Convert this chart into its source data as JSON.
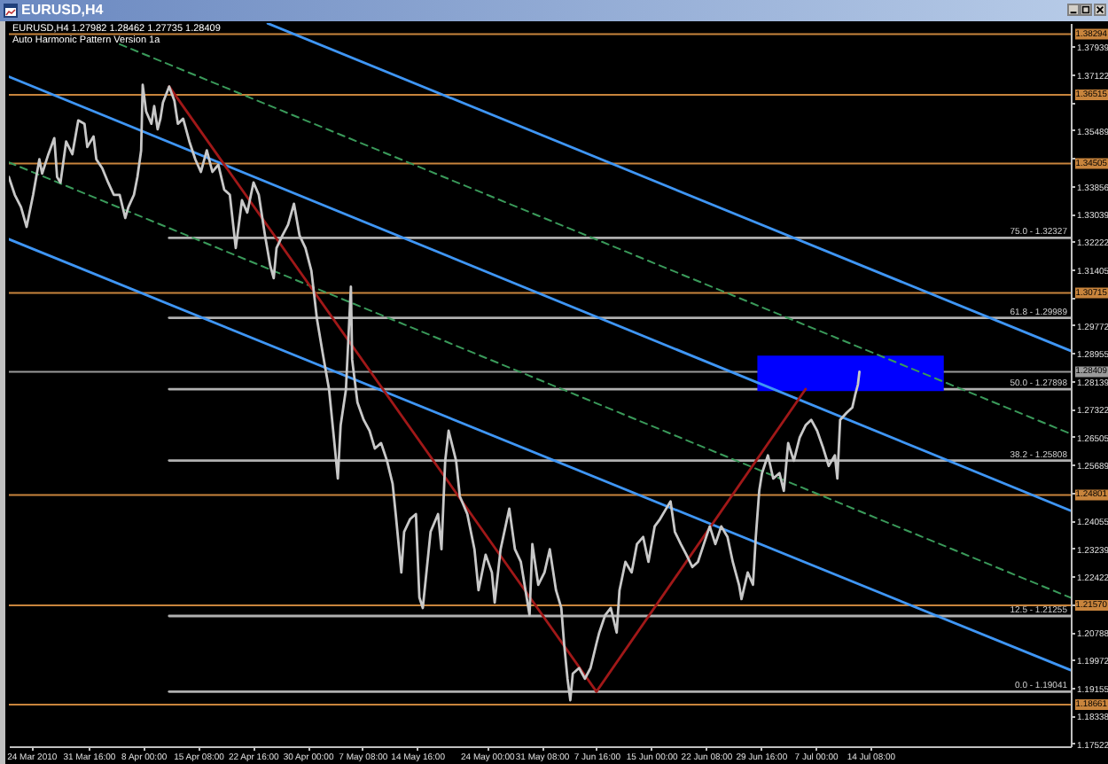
{
  "chart_data": {
    "type": "line",
    "title": "EURUSD,H4",
    "subtitle": "EURUSD,H4  1.27982 1.28462 1.27735 1.28409",
    "annotations": [
      "Auto Harmonic Pattern Version 1a",
      {
        "text": "75.0 - 1.32327",
        "y": 1.32327
      },
      {
        "text": "61.8 - 1.29989",
        "y": 1.29989
      },
      {
        "text": "50.0 - 1.27898",
        "y": 1.27898
      },
      {
        "text": "38.2 - 1.25808",
        "y": 1.25808
      },
      {
        "text": "12.5 - 1.21255",
        "y": 1.21255
      },
      {
        "text": "0.0 - 1.19041",
        "y": 1.19041
      }
    ],
    "xlim": [
      "2010-03-21T00:00",
      "2010-08-10T04:00"
    ],
    "xticks": [
      {
        "value": "2010-03-24T00:00",
        "label": "24 Mar 2010"
      },
      {
        "value": "2010-03-31T16:00",
        "label": "31 Mar 16:00"
      },
      {
        "value": "2010-04-08T00:00",
        "label": "8 Apr 00:00"
      },
      {
        "value": "2010-04-15T08:00",
        "label": "15 Apr 08:00"
      },
      {
        "value": "2010-04-22T16:00",
        "label": "22 Apr 16:00"
      },
      {
        "value": "2010-04-30T00:00",
        "label": "30 Apr 00:00"
      },
      {
        "value": "2010-05-07T08:00",
        "label": "7 May 08:00"
      },
      {
        "value": "2010-05-14T16:00",
        "label": "14 May 16:00"
      },
      {
        "value": "2010-05-24T00:00",
        "label": "24 May 00:00"
      },
      {
        "value": "2010-05-31T08:00",
        "label": "31 May 08:00"
      },
      {
        "value": "2010-06-07T16:00",
        "label": "7 Jun 16:00"
      },
      {
        "value": "2010-06-15T00:00",
        "label": "15 Jun 00:00"
      },
      {
        "value": "2010-06-22T08:00",
        "label": "22 Jun 08:00"
      },
      {
        "value": "2010-06-29T16:00",
        "label": "29 Jun 16:00"
      },
      {
        "value": "2010-07-07T00:00",
        "label": "7 Jul 00:00"
      },
      {
        "value": "2010-07-14T08:00",
        "label": "14 Jul 08:00"
      }
    ],
    "ylim": [
      1.1744,
      1.3862
    ],
    "yticks": [
      1.17522,
      1.18338,
      1.19155,
      1.19972,
      1.20788,
      {
        "value": 1.21605,
        "label": null
      },
      1.22422,
      1.23239,
      1.24055,
      {
        "value": 1.24872,
        "label": null
      },
      1.25689,
      1.26505,
      1.27322,
      1.28139,
      1.28955,
      1.29772,
      {
        "value": 1.30589,
        "label": null
      },
      1.31405,
      1.32222,
      1.33039,
      1.33856,
      {
        "value": 1.34672,
        "label": null
      },
      1.35489,
      {
        "value": 1.36306,
        "label": null
      },
      1.37122,
      1.37939
    ],
    "ref_lines": [
      {
        "axis": "y",
        "value": 1.38294,
        "label": "1.38294",
        "color": "#c8843c"
      },
      {
        "axis": "y",
        "value": 1.36515,
        "label": "1.36515",
        "color": "#c8843c"
      },
      {
        "axis": "y",
        "value": 1.34505,
        "label": "1.34505",
        "color": "#c8843c"
      },
      {
        "axis": "y",
        "value": 1.30715,
        "label": "1.30715",
        "color": "#c8843c"
      },
      {
        "axis": "y",
        "value": 1.24801,
        "label": "1.24801",
        "color": "#c8843c"
      },
      {
        "axis": "y",
        "value": 1.2157,
        "label": "1.21570",
        "color": "#c8843c"
      },
      {
        "axis": "y",
        "value": 1.18661,
        "label": "1.18661",
        "color": "#c8843c"
      },
      {
        "axis": "y",
        "value": 1.28409,
        "label": "1.28409",
        "color": "#9a9a9a"
      }
    ],
    "series": [
      {
        "color": "#b0b0b0",
        "x": [
          "2010-04-11T11:00",
          "2010-08-10T04:00"
        ],
        "values": [
          1.32327,
          1.32327
        ]
      },
      {
        "color": "#b0b0b0",
        "x": [
          "2010-04-11T11:00",
          "2010-08-10T04:00"
        ],
        "values": [
          1.29989,
          1.29989
        ]
      },
      {
        "color": "#b0b0b0",
        "x": [
          "2010-04-11T11:00",
          "2010-08-10T04:00"
        ],
        "values": [
          1.27898,
          1.27898
        ]
      },
      {
        "color": "#b0b0b0",
        "x": [
          "2010-04-11T11:00",
          "2010-08-10T04:00"
        ],
        "values": [
          1.25808,
          1.25808
        ]
      },
      {
        "color": "#b0b0b0",
        "x": [
          "2010-04-11T11:00",
          "2010-08-10T04:00"
        ],
        "values": [
          1.21255,
          1.21255
        ]
      },
      {
        "color": "#b0b0b0",
        "x": [
          "2010-04-11T11:00",
          "2010-08-10T04:00"
        ],
        "values": [
          1.19041,
          1.19041
        ]
      },
      {
        "color": "#0000ff",
        "x": [
          "2010-06-29T05:00",
          "2010-07-24T04:00"
        ],
        "values": [
          null,
          null
        ],
        "lower": [
          1.2784,
          1.2784
        ],
        "upper": [
          1.2888,
          1.2888
        ]
      },
      {
        "color": "#3f96f5",
        "x": [
          "2010-04-24T16:00",
          "2010-08-10T04:00"
        ],
        "values": [
          1.3861,
          1.2902
        ]
      },
      {
        "color": "#3f96f5",
        "x": [
          "2010-03-21T00:00",
          "2010-08-10T04:00"
        ],
        "values": [
          1.3705,
          1.2434
        ]
      },
      {
        "color": "#3f96f5",
        "x": [
          "2010-03-21T00:00",
          "2010-08-10T04:00"
        ],
        "values": [
          1.3229,
          1.1967
        ]
      },
      {
        "color": "#3a9a5a",
        "line_style": "dashed",
        "x": [
          "2010-04-04T20:00",
          "2010-08-10T04:00"
        ],
        "values": [
          1.38,
          1.2659
        ]
      },
      {
        "color": "#3a9a5a",
        "line_style": "dashed",
        "x": [
          "2010-03-21T00:00",
          "2010-08-10T04:00"
        ],
        "values": [
          1.3454,
          1.2179
        ]
      },
      {
        "color": "#a01818",
        "x": [
          "2010-04-11T11:00",
          "2010-06-07T16:00",
          "2010-07-05T16:00"
        ],
        "values": [
          1.3676,
          1.1904,
          1.279
        ]
      },
      {
        "color": "#c8c8c8",
        "x": [
          "2010-03-21T00:00",
          "2010-03-21T19:00",
          "2010-03-22T15:00",
          "2010-03-23T09:00",
          "2010-03-24T06:00",
          "2010-03-25T02:00",
          "2010-03-25T11:00",
          "2010-03-26T07:00",
          "2010-03-27T02:00",
          "2010-03-27T11:00",
          "2010-03-27T22:00",
          "2010-03-28T16:00",
          "2010-03-29T12:00",
          "2010-03-30T07:00",
          "2010-03-31T03:00",
          "2010-03-31T12:00",
          "2010-04-01T08:00",
          "2010-04-01T17:00",
          "2010-04-02T12:00",
          "2010-04-03T07:00",
          "2010-04-04T01:00",
          "2010-04-04T20:00",
          "2010-04-05T14:00",
          "2010-04-06T00:00",
          "2010-04-06T18:00",
          "2010-04-07T05:00",
          "2010-04-07T17:00",
          "2010-04-07T22:00",
          "2010-04-08T09:00",
          "2010-04-09T02:00",
          "2010-04-09T11:00",
          "2010-04-09T22:00",
          "2010-04-10T07:00",
          "2010-04-10T15:00",
          "2010-04-11T11:00",
          "2010-04-12T04:00",
          "2010-04-12T15:00",
          "2010-04-13T08:00",
          "2010-04-14T04:00",
          "2010-04-14T23:00",
          "2010-04-15T17:00",
          "2010-04-16T12:00",
          "2010-04-17T06:00",
          "2010-04-18T01:00",
          "2010-04-18T20:00",
          "2010-04-19T14:00",
          "2010-04-20T09:00",
          "2010-04-21T05:00",
          "2010-04-21T22:00",
          "2010-04-22T18:00",
          "2010-04-23T11:00",
          "2010-04-24T07:00",
          "2010-04-25T00:00",
          "2010-04-25T11:00",
          "2010-04-25T20:00",
          "2010-04-26T15:00",
          "2010-04-27T09:00",
          "2010-04-28T04:00",
          "2010-04-28T22:00",
          "2010-04-29T17:00",
          "2010-04-30T12:00",
          "2010-05-01T06:00",
          "2010-05-02T01:00",
          "2010-05-02T21:00",
          "2010-05-03T14:00",
          "2010-05-04T01:00",
          "2010-05-04T10:00",
          "2010-05-05T03:00",
          "2010-05-05T19:00",
          "2010-05-05T23:00",
          "2010-05-06T16:00",
          "2010-05-07T12:00",
          "2010-05-08T07:00",
          "2010-05-09T00:00",
          "2010-05-09T20:00",
          "2010-05-10T15:00",
          "2010-05-11T09:00",
          "2010-05-11T19:00",
          "2010-05-12T13:00",
          "2010-05-12T22:00",
          "2010-05-13T17:00",
          "2010-05-14T12:00",
          "2010-05-14T23:00",
          "2010-05-15T10:00",
          "2010-05-16T11:00",
          "2010-05-17T11:00",
          "2010-05-17T22:00",
          "2010-05-18T10:00",
          "2010-05-18T21:00",
          "2010-05-19T21:00",
          "2010-05-20T09:00",
          "2010-05-21T09:00",
          "2010-05-22T08:00",
          "2010-05-22T21:00",
          "2010-05-23T20:00",
          "2010-05-24T16:00",
          "2010-05-25T01:00",
          "2010-05-25T20:00",
          "2010-05-27T00:00",
          "2010-05-27T18:00",
          "2010-05-28T13:00",
          "2010-05-29T17:00",
          "2010-05-30T02:00",
          "2010-05-30T21:00",
          "2010-05-31T17:00",
          "2010-06-01T10:00",
          "2010-06-02T06:00",
          "2010-06-02T23:00",
          "2010-06-03T08:00",
          "2010-06-03T19:00",
          "2010-06-04T04:00",
          "2010-06-04T12:00",
          "2010-06-05T08:00",
          "2010-06-06T03:00",
          "2010-06-06T21:00",
          "2010-06-07T16:00",
          "2010-06-08T01:00",
          "2010-06-08T20:00",
          "2010-06-09T14:00",
          "2010-06-10T09:00",
          "2010-06-10T18:00",
          "2010-06-11T13:00",
          "2010-06-12T09:00",
          "2010-06-13T02:00",
          "2010-06-13T22:00",
          "2010-06-14T15:00",
          "2010-06-15T11:00",
          "2010-06-16T04:00",
          "2010-06-17T00:00",
          "2010-06-17T14:00",
          "2010-06-18T04:00",
          "2010-06-18T23:00",
          "2010-06-19T17:00",
          "2010-06-20T12:00",
          "2010-06-21T06:00",
          "2010-06-22T01:00",
          "2010-06-22T20:00",
          "2010-06-23T14:00",
          "2010-06-24T09:00",
          "2010-06-25T05:00",
          "2010-06-25T22:00",
          "2010-06-26T18:00",
          "2010-06-27T02:00",
          "2010-06-27T22:00",
          "2010-06-28T15:00",
          "2010-06-29T00:00",
          "2010-06-29T11:00",
          "2010-06-29T20:00",
          "2010-06-30T15:00",
          "2010-07-01T08:00",
          "2010-07-02T04:00",
          "2010-07-02T18:00",
          "2010-07-03T08:00",
          "2010-07-04T02:00",
          "2010-07-04T21:00",
          "2010-07-05T16:00",
          "2010-07-06T10:00",
          "2010-07-07T05:00",
          "2010-07-08T01:00",
          "2010-07-08T18:00",
          "2010-07-09T14:00",
          "2010-07-09T22:00",
          "2010-07-10T07:00",
          "2010-07-11T03:00",
          "2010-07-11T22:00",
          "2010-07-12T07:00",
          "2010-07-12T16:00",
          "2010-07-12T21:00"
        ],
        "values": [
          1.3411,
          1.3359,
          1.3323,
          1.3265,
          1.3359,
          1.3463,
          1.3421,
          1.3478,
          1.3525,
          1.3411,
          1.3395,
          1.3515,
          1.3478,
          1.3577,
          1.3567,
          1.3499,
          1.353,
          1.3463,
          1.3437,
          1.3395,
          1.3359,
          1.3359,
          1.3291,
          1.3323,
          1.3359,
          1.3411,
          1.3489,
          1.3681,
          1.3603,
          1.3567,
          1.3619,
          1.3551,
          1.3582,
          1.3629,
          1.3676,
          1.3634,
          1.3567,
          1.3582,
          1.3515,
          1.3463,
          1.3426,
          1.3489,
          1.3426,
          1.3447,
          1.3374,
          1.3359,
          1.3203,
          1.3343,
          1.3307,
          1.3395,
          1.3359,
          1.324,
          1.3151,
          1.3115,
          1.3203,
          1.324,
          1.3271,
          1.3333,
          1.324,
          1.3203,
          1.3136,
          1.2995,
          1.2892,
          1.2788,
          1.2632,
          1.2528,
          1.2684,
          1.2788,
          1.309,
          1.2876,
          1.2751,
          1.27,
          1.2668,
          1.2616,
          1.2632,
          1.258,
          1.2513,
          1.2424,
          1.2253,
          1.2372,
          1.2409,
          1.2424,
          1.218,
          1.2149,
          1.2372,
          1.2424,
          1.2321,
          1.258,
          1.2668,
          1.258,
          1.2476,
          1.2424,
          1.2321,
          1.2201,
          1.2305,
          1.2253,
          1.2165,
          1.2321,
          1.244,
          1.2321,
          1.2284,
          1.2128,
          1.2336,
          1.2217,
          1.2253,
          1.2321,
          1.2201,
          1.2149,
          1.2045,
          1.1942,
          1.1879,
          1.1957,
          1.1973,
          1.1942,
          1.1973,
          1.2045,
          1.2077,
          1.2128,
          1.2149,
          1.2077,
          1.2201,
          1.2284,
          1.2253,
          1.2336,
          1.2357,
          1.2284,
          1.2388,
          1.2409,
          1.244,
          1.2461,
          1.2372,
          1.2336,
          1.2305,
          1.2269,
          1.2284,
          1.2336,
          1.2388,
          1.2336,
          1.2388,
          1.2357,
          1.2284,
          1.2217,
          1.2175,
          1.2253,
          1.2217,
          1.2357,
          1.2492,
          1.2544,
          1.2596,
          1.2528,
          1.2544,
          1.2492,
          1.2632,
          1.258,
          1.2648,
          1.2684,
          1.27,
          1.2668,
          1.2616,
          1.2565,
          1.2596,
          1.2528,
          1.27,
          1.272,
          1.2736,
          1.2772,
          1.2803,
          1.2841
        ]
      }
    ]
  }
}
